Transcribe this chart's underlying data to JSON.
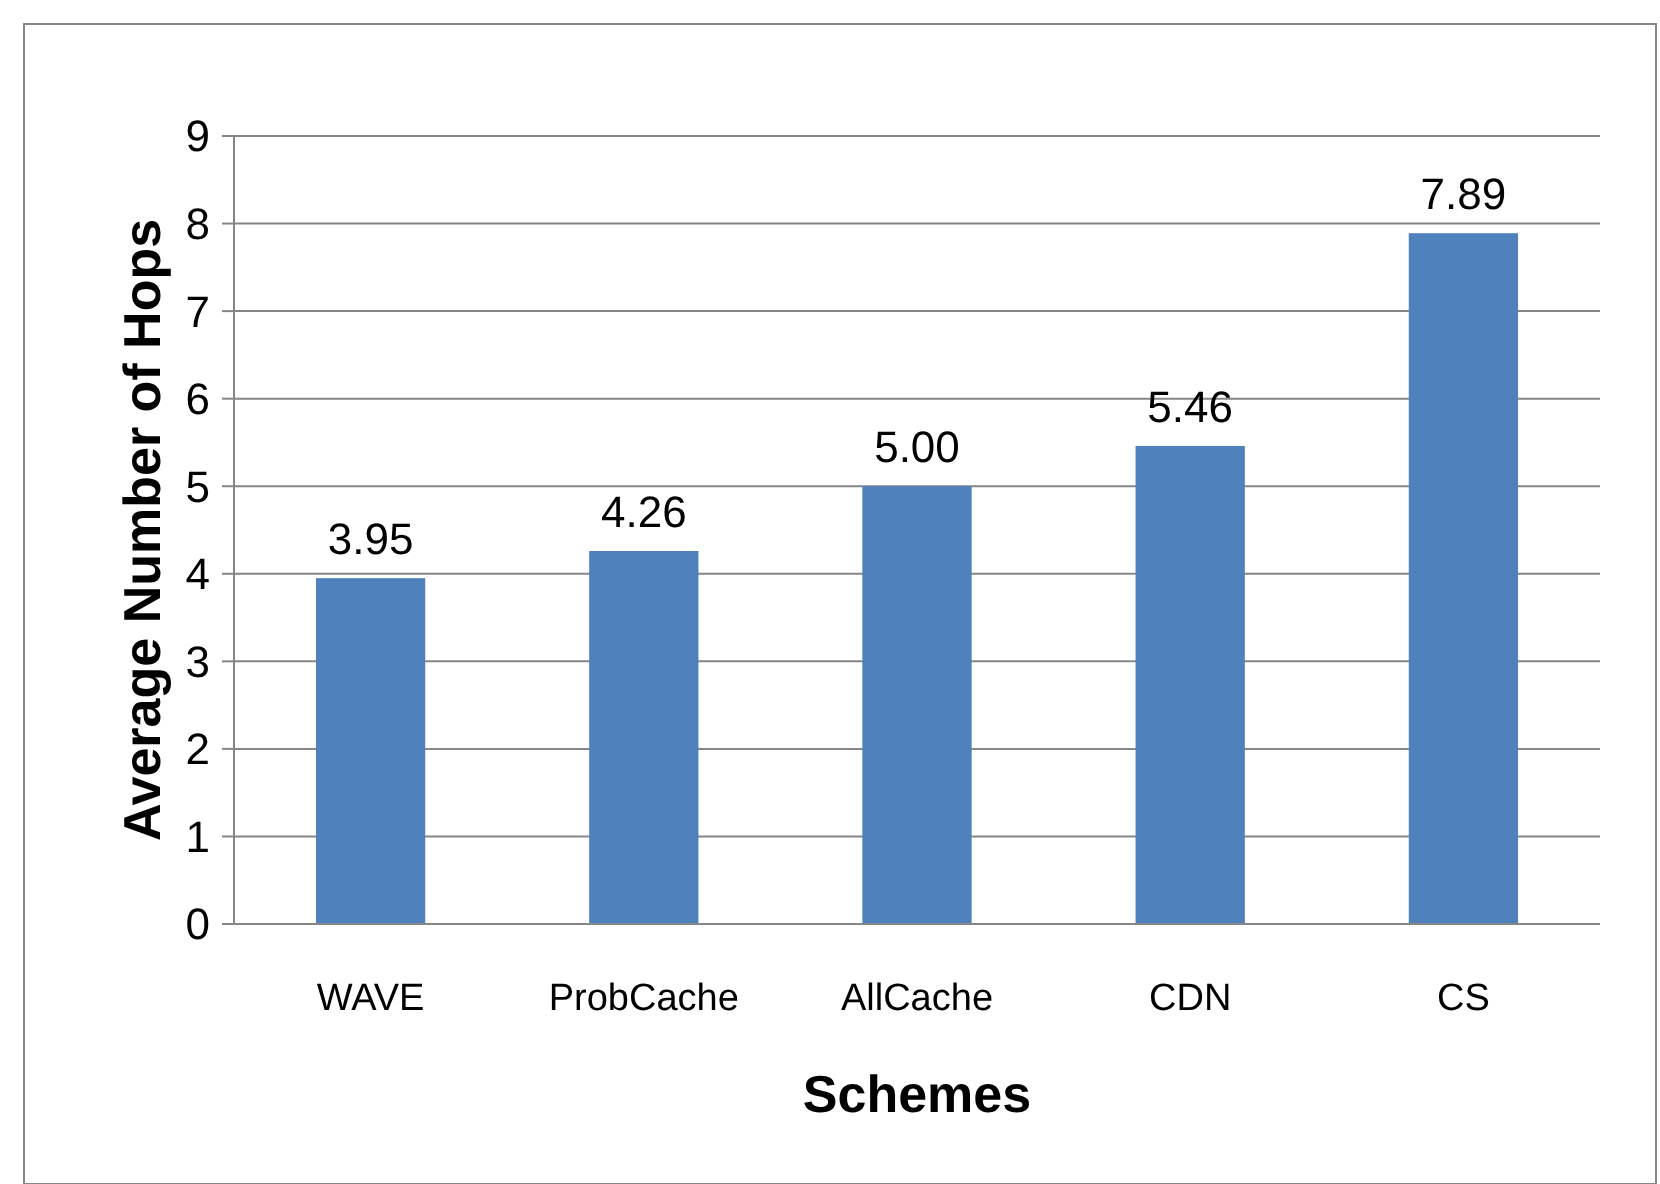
{
  "chart_data": {
    "type": "bar",
    "xlabel": "Schemes",
    "ylabel": "Average Number of Hops",
    "categories": [
      "WAVE",
      "ProbCache",
      "AllCache",
      "CDN",
      "CS"
    ],
    "values": [
      3.95,
      4.26,
      5.0,
      5.46,
      7.89
    ],
    "value_labels": [
      "3.95",
      "4.26",
      "5.00",
      "5.46",
      "7.89"
    ],
    "color": "#4f81bd",
    "ylim": [
      0,
      9
    ],
    "yticks": [
      0,
      1,
      2,
      3,
      4,
      5,
      6,
      7,
      8,
      9
    ],
    "grid": "y"
  }
}
